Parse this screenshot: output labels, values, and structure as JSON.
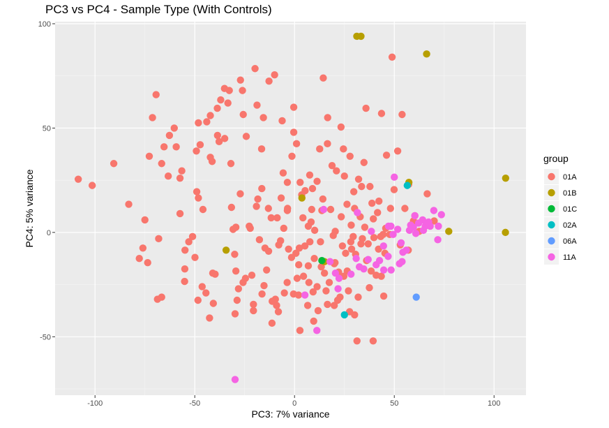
{
  "chart_data": {
    "type": "scatter",
    "title": "PC3 vs PC4 - Sample Type (With Controls)",
    "xlabel": "PC3: 7% variance",
    "ylabel": "PC4: 5% variance",
    "xlim": [
      -120,
      116
    ],
    "ylim": [
      -78,
      101
    ],
    "xticks": [
      -100,
      -50,
      0,
      50,
      100
    ],
    "yticks": [
      -50,
      0,
      50,
      100
    ],
    "grid": true,
    "legend": {
      "title": "group",
      "placement": "right"
    },
    "series": [
      {
        "name": "01A",
        "color": "#F8766D",
        "points": [
          [
            -108.4,
            25.5
          ],
          [
            -101.4,
            22.5
          ],
          [
            -90.6,
            33.0
          ],
          [
            -83.1,
            13.5
          ],
          [
            -77.8,
            -12.5
          ],
          [
            -76.0,
            -7.5
          ],
          [
            -75.0,
            6.0
          ],
          [
            -73.6,
            -14.5
          ],
          [
            -72.8,
            36.5
          ],
          [
            -71.2,
            55.0
          ],
          [
            -69.4,
            66.0
          ],
          [
            -68.1,
            -3.0
          ],
          [
            -68.7,
            -32.0
          ],
          [
            -66.6,
            33.0
          ],
          [
            -66.6,
            -31.0
          ],
          [
            -65.4,
            41.0
          ],
          [
            -62.7,
            46.5
          ],
          [
            -63.3,
            27.0
          ],
          [
            -60.3,
            50.0
          ],
          [
            -59.3,
            41.0
          ],
          [
            -57.4,
            26.0
          ],
          [
            -57.4,
            9.0
          ],
          [
            -56.5,
            29.5
          ],
          [
            -54.9,
            -8.5
          ],
          [
            -55.0,
            -17.5
          ],
          [
            -55.1,
            -23.5
          ],
          [
            -53.0,
            -4.5
          ],
          [
            -51.1,
            -2.0
          ],
          [
            -49.0,
            19.5
          ],
          [
            -48.2,
            16.5
          ],
          [
            -49.2,
            39.0
          ],
          [
            -49.9,
            -12.0
          ],
          [
            -48.4,
            -32.5
          ],
          [
            -47.3,
            42.0
          ],
          [
            -48.2,
            52.5
          ],
          [
            -46.3,
            -26.0
          ],
          [
            -45.9,
            11.0
          ],
          [
            -44.0,
            53.0
          ],
          [
            -44.4,
            -29.0
          ],
          [
            -42.6,
            -41.0
          ],
          [
            -42.2,
            36.0
          ],
          [
            -42.2,
            56.0
          ],
          [
            -41.3,
            34.0
          ],
          [
            -41.0,
            -19.5
          ],
          [
            -40.7,
            -34.0
          ],
          [
            -39.8,
            -20.0
          ],
          [
            -38.7,
            59.5
          ],
          [
            -38.6,
            46.5
          ],
          [
            -37.8,
            43.5
          ],
          [
            -37.0,
            63.5
          ],
          [
            -35.1,
            69.0
          ],
          [
            -35.0,
            45.0
          ],
          [
            -33.4,
            62.0
          ],
          [
            -31.9,
            33.0
          ],
          [
            -32.7,
            68.0
          ],
          [
            -31.6,
            12.0
          ],
          [
            -30.8,
            1.5
          ],
          [
            -30.0,
            -10.5
          ],
          [
            -29.4,
            -18.5
          ],
          [
            -29.8,
            -39.0
          ],
          [
            -29.4,
            2.5
          ],
          [
            -28.1,
            -27.0
          ],
          [
            -28.8,
            -32.5
          ],
          [
            -27.2,
            18.5
          ],
          [
            -27.1,
            73.0
          ],
          [
            -26.1,
            68.0
          ],
          [
            -25.7,
            56.5
          ],
          [
            -25.8,
            -24.0
          ],
          [
            -24.2,
            46.0
          ],
          [
            -24.6,
            -22.0
          ],
          [
            -22.7,
            3.0
          ],
          [
            -22.2,
            2.0
          ],
          [
            -21.4,
            -20.5
          ],
          [
            -20.6,
            -37.5
          ],
          [
            -20.6,
            -34.5
          ],
          [
            -19.8,
            78.5
          ],
          [
            -19.1,
            12.5
          ],
          [
            -18.8,
            61.0
          ],
          [
            -18.4,
            16.0
          ],
          [
            -17.6,
            -3.5
          ],
          [
            -16.4,
            21.0
          ],
          [
            -16.5,
            40.0
          ],
          [
            -16.3,
            -29.5
          ],
          [
            -15.6,
            55.0
          ],
          [
            -15.3,
            -25.5
          ],
          [
            -14.8,
            -7.5
          ],
          [
            -14.0,
            -18.0
          ],
          [
            -13.1,
            11.5
          ],
          [
            -13.0,
            -9.0
          ],
          [
            -12.8,
            72.5
          ],
          [
            -11.3,
            -43.5
          ],
          [
            -11.7,
            7.0
          ],
          [
            -11.2,
            -33.0
          ],
          [
            -10.0,
            75.5
          ],
          [
            -9.6,
            -32.0
          ],
          [
            -9.0,
            -35.0
          ],
          [
            -8.7,
            7.0
          ],
          [
            -8.1,
            -38.0
          ],
          [
            -7.9,
            -6.0
          ],
          [
            -7.0,
            -4.0
          ],
          [
            -6.7,
            16.5
          ],
          [
            -6.2,
            53.5
          ],
          [
            -5.7,
            28.5
          ],
          [
            -5.4,
            2.0
          ],
          [
            -5.1,
            -29.0
          ],
          [
            -3.6,
            10.5
          ],
          [
            -3.7,
            -24.0
          ],
          [
            -3.5,
            11.5
          ],
          [
            -3.6,
            24.0
          ],
          [
            -3.0,
            -8.0
          ],
          [
            -1.3,
            36.5
          ],
          [
            -1.5,
            -12.0
          ],
          [
            -0.4,
            48.0
          ],
          [
            -0.4,
            60.0
          ],
          [
            -0.5,
            -29.5
          ],
          [
            0.7,
            -10.0
          ],
          [
            1.0,
            42.5
          ],
          [
            1.3,
            -22.0
          ],
          [
            2.0,
            -30.0
          ],
          [
            2.1,
            -15.5
          ],
          [
            2.4,
            -7.5
          ],
          [
            2.7,
            -47.0
          ],
          [
            2.8,
            24.0
          ],
          [
            3.6,
            18.0
          ],
          [
            4.2,
            7.0
          ],
          [
            4.5,
            -21.0
          ],
          [
            5.2,
            -6.5
          ],
          [
            5.3,
            20.0
          ],
          [
            6.6,
            -35.0
          ],
          [
            6.9,
            3.0
          ],
          [
            6.9,
            -16.0
          ],
          [
            7.2,
            -24.0
          ],
          [
            7.6,
            27.5
          ],
          [
            7.7,
            -4.5
          ],
          [
            8.3,
            5.0
          ],
          [
            8.6,
            11.0
          ],
          [
            9.0,
            21.0
          ],
          [
            9.3,
            -28.5
          ],
          [
            9.6,
            -42.5
          ],
          [
            9.9,
            -12.5
          ],
          [
            10.1,
            1.0
          ],
          [
            11.3,
            -26.0
          ],
          [
            11.3,
            24.5
          ],
          [
            11.8,
            -37.5
          ],
          [
            12.6,
            40.0
          ],
          [
            13.0,
            -4.5
          ],
          [
            13.4,
            -16.5
          ],
          [
            13.7,
            10.5
          ],
          [
            14.2,
            16.0
          ],
          [
            14.4,
            74.0
          ],
          [
            15.0,
            -19.5
          ],
          [
            15.8,
            -28.0
          ],
          [
            16.5,
            -34.5
          ],
          [
            16.6,
            55.0
          ],
          [
            16.5,
            42.5
          ],
          [
            17.4,
            -24.0
          ],
          [
            18.1,
            11.0
          ],
          [
            18.8,
            32.0
          ],
          [
            19.4,
            -1.5
          ],
          [
            19.9,
            -15.0
          ],
          [
            19.9,
            -35.0
          ],
          [
            20.3,
            -14.5
          ],
          [
            20.4,
            0.5
          ],
          [
            21.0,
            29.5
          ],
          [
            21.6,
            -32.5
          ],
          [
            22.1,
            -19.0
          ],
          [
            22.8,
            -31.0
          ],
          [
            23.3,
            50.5
          ],
          [
            23.4,
            7.5
          ],
          [
            24.0,
            -6.5
          ],
          [
            24.5,
            40.0
          ],
          [
            24.7,
            -21.0
          ],
          [
            25.0,
            27.0
          ],
          [
            25.6,
            -10.0
          ],
          [
            26.3,
            13.5
          ],
          [
            26.4,
            -18.5
          ],
          [
            27.0,
            -28.0
          ],
          [
            27.6,
            -38.0
          ],
          [
            27.8,
            36.5
          ],
          [
            28.2,
            -4.5
          ],
          [
            28.4,
            3.5
          ],
          [
            28.6,
            -8.0
          ],
          [
            29.4,
            -2.0
          ],
          [
            29.7,
            19.5
          ],
          [
            30.1,
            -39.5
          ],
          [
            30.1,
            11.5
          ],
          [
            30.6,
            -10.5
          ],
          [
            31.3,
            -52.0
          ],
          [
            31.9,
            -31.0
          ],
          [
            32.1,
            25.5
          ],
          [
            32.9,
            7.5
          ],
          [
            33.3,
            -5.5
          ],
          [
            33.6,
            22.0
          ],
          [
            34.0,
            -3.0
          ],
          [
            34.8,
            33.5
          ],
          [
            35.2,
            2.5
          ],
          [
            35.8,
            59.5
          ],
          [
            36.1,
            -13.5
          ],
          [
            36.9,
            -5.5
          ],
          [
            37.5,
            -26.5
          ],
          [
            37.8,
            22.0
          ],
          [
            38.4,
            -18.5
          ],
          [
            38.8,
            14.0
          ],
          [
            39.4,
            -52.0
          ],
          [
            39.5,
            6.5
          ],
          [
            39.8,
            -2.5
          ],
          [
            40.9,
            -20.5
          ],
          [
            41.6,
            9.5
          ],
          [
            42.1,
            -8.0
          ],
          [
            42.3,
            15.0
          ],
          [
            43.2,
            -2.0
          ],
          [
            43.5,
            -21.0
          ],
          [
            43.6,
            57.0
          ],
          [
            44.4,
            -1.0
          ],
          [
            44.7,
            -30.5
          ],
          [
            45.3,
            -10.0
          ],
          [
            45.7,
            2.0
          ],
          [
            46.1,
            37.0
          ],
          [
            47.7,
            -1.0
          ],
          [
            48.1,
            11.5
          ],
          [
            48.9,
            84.0
          ],
          [
            49.9,
            20.5
          ],
          [
            51.7,
            39.0
          ],
          [
            53.0,
            -6.0
          ],
          [
            53.9,
            56.5
          ],
          [
            55.3,
            11.5
          ],
          [
            57.0,
            -8.5
          ],
          [
            57.2,
            23.0
          ],
          [
            59.6,
            5.5
          ],
          [
            60.3,
            8.0
          ],
          [
            62.5,
            0.5
          ],
          [
            66.5,
            18.5
          ],
          [
            70.0,
            5.5
          ]
        ]
      },
      {
        "name": "01B",
        "color": "#B79F00",
        "points": [
          [
            31.2,
            94.0
          ],
          [
            33.3,
            94.0
          ],
          [
            66.2,
            85.5
          ],
          [
            105.8,
            26.0
          ],
          [
            105.7,
            0.0
          ],
          [
            77.3,
            0.5
          ],
          [
            57.3,
            24.0
          ],
          [
            3.7,
            16.5
          ],
          [
            -34.3,
            -8.5
          ],
          [
            15.0,
            -14.0
          ]
        ]
      },
      {
        "name": "01C",
        "color": "#00BA38",
        "points": [
          [
            13.7,
            -13.5
          ]
        ]
      },
      {
        "name": "02A",
        "color": "#00BFC4",
        "points": [
          [
            25.0,
            -39.5
          ],
          [
            56.5,
            22.5
          ]
        ]
      },
      {
        "name": "06A",
        "color": "#619CFF",
        "points": [
          [
            61.0,
            -31.0
          ]
        ]
      },
      {
        "name": "11A",
        "color": "#F564E3",
        "points": [
          [
            -29.8,
            -70.5
          ],
          [
            5.2,
            -30.0
          ],
          [
            11.2,
            -47.0
          ],
          [
            14.6,
            11.0
          ],
          [
            17.8,
            -14.0
          ],
          [
            20.5,
            -19.5
          ],
          [
            21.8,
            -27.0
          ],
          [
            22.3,
            -22.0
          ],
          [
            28.3,
            -20.0
          ],
          [
            30.9,
            -12.5
          ],
          [
            31.5,
            9.5
          ],
          [
            32.5,
            -16.5
          ],
          [
            34.7,
            -17.5
          ],
          [
            36.9,
            -13.0
          ],
          [
            38.5,
            0.5
          ],
          [
            40.9,
            -15.5
          ],
          [
            42.6,
            -13.5
          ],
          [
            44.6,
            -6.5
          ],
          [
            44.7,
            -18.0
          ],
          [
            46.9,
            -11.5
          ],
          [
            47.1,
            3.0
          ],
          [
            48.3,
            3.0
          ],
          [
            48.4,
            -18.0
          ],
          [
            49.4,
            -1.0
          ],
          [
            50.0,
            26.5
          ],
          [
            51.7,
            1.5
          ],
          [
            52.6,
            -15.0
          ],
          [
            53.4,
            -5.0
          ],
          [
            53.9,
            -14.0
          ],
          [
            54.3,
            -9.5
          ],
          [
            56.0,
            -8.5
          ],
          [
            57.6,
            1.0
          ],
          [
            58.2,
            3.5
          ],
          [
            59.6,
            2.5
          ],
          [
            60.3,
            8.0
          ],
          [
            60.8,
            -0.5
          ],
          [
            62.2,
            4.5
          ],
          [
            64.2,
            6.0
          ],
          [
            64.6,
            1.0
          ],
          [
            65.5,
            3.0
          ],
          [
            67.2,
            5.0
          ],
          [
            68.0,
            3.0
          ],
          [
            69.8,
            10.5
          ],
          [
            71.8,
            -3.5
          ],
          [
            72.1,
            3.0
          ],
          [
            73.6,
            8.5
          ]
        ]
      }
    ]
  }
}
